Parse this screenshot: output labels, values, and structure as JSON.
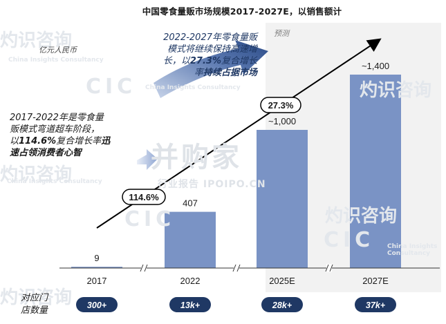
{
  "title": "中国零食量贩市场规模2017-2027E，以销售额计",
  "unit_label": "亿元人民币",
  "forecast_label": "预测",
  "note_left": {
    "line1": "2017-2022年是零食量",
    "line2": "贩模式弯道超车阶段，",
    "line3_a": "以",
    "line3_b": "114.6%",
    "line3_c": "复合增长率",
    "line3_d": "迅",
    "line4": "速占领消费者心智"
  },
  "note_right": {
    "line1": "2022-2027年零食量贩",
    "line2": "模式将继续保持高速增",
    "line3_a": "长，以",
    "line3_b": "27.3%",
    "line3_c": "复合增长",
    "line4_a": "率",
    "line4_b": "持续占据市场"
  },
  "cagr": [
    {
      "label": "114.6%"
    },
    {
      "label": "27.3%"
    }
  ],
  "store_count_label_1": "对应门",
  "store_count_label_2": "店数量",
  "store_counts": [
    "300+",
    "13k+",
    "28k+",
    "37k+"
  ],
  "watermarks": {
    "cic": "CIC",
    "cic_en": "China Insights Consultancy",
    "zh": "灼识咨询",
    "center_1": "并购家",
    "center_2": "行业报告 IPOIPO.CN"
  },
  "colors": {
    "bar": "#7a93c5",
    "forecast_bg": "#f2f2f2",
    "arrow_blue": "#2f4f8a",
    "badge": "#1f3864"
  },
  "chart_data": {
    "type": "bar",
    "title": "中国零食量贩市场规模2017-2027E，以销售额计",
    "ylabel": "亿元人民币",
    "categories": [
      "2017",
      "2022",
      "2025E",
      "2027E"
    ],
    "values": [
      9,
      407,
      1000,
      1400
    ],
    "value_labels": [
      "9",
      "407",
      "~1,000",
      "~1,400"
    ],
    "ylim": [
      0,
      1500
    ],
    "grid": false,
    "forecast_categories": [
      "2025E",
      "2027E"
    ],
    "annotations": [
      {
        "text": "114.6%",
        "from": "2017",
        "to": "2022"
      },
      {
        "text": "27.3%",
        "from": "2022",
        "to": "2027E"
      }
    ]
  }
}
